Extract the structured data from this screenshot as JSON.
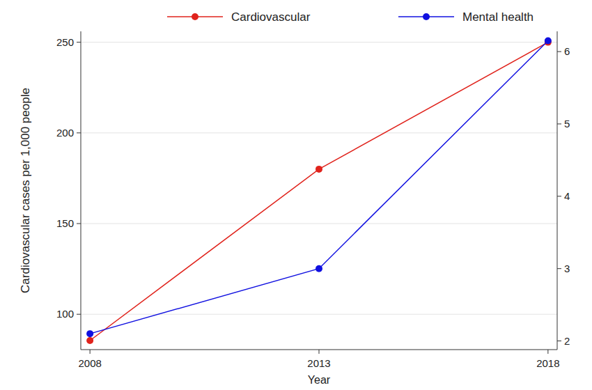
{
  "chart_data": {
    "type": "line",
    "x_label": "Year",
    "y_label": "Cardiovascular cases per 1,000 people",
    "x": [
      2008,
      2013,
      2018
    ],
    "xlim": [
      2007.8,
      2018.2
    ],
    "xticks": [
      2008,
      2013,
      2018
    ],
    "ylim": [
      80.5,
      256
    ],
    "yticks": [
      100,
      150,
      200,
      250
    ],
    "y2lim": [
      1.88,
      6.28
    ],
    "y2ticks": [
      2,
      3,
      4,
      5,
      6
    ],
    "grid": true,
    "legend": "top",
    "marker": "circle",
    "series": [
      {
        "name": "Cardiovascular",
        "color": "#e0231c",
        "values": [
          85.5,
          180,
          250
        ]
      },
      {
        "name": "Mental health",
        "color": "#1010e0",
        "values": [
          2.1,
          3.0,
          6.15
        ],
        "axis": "y2"
      }
    ]
  }
}
